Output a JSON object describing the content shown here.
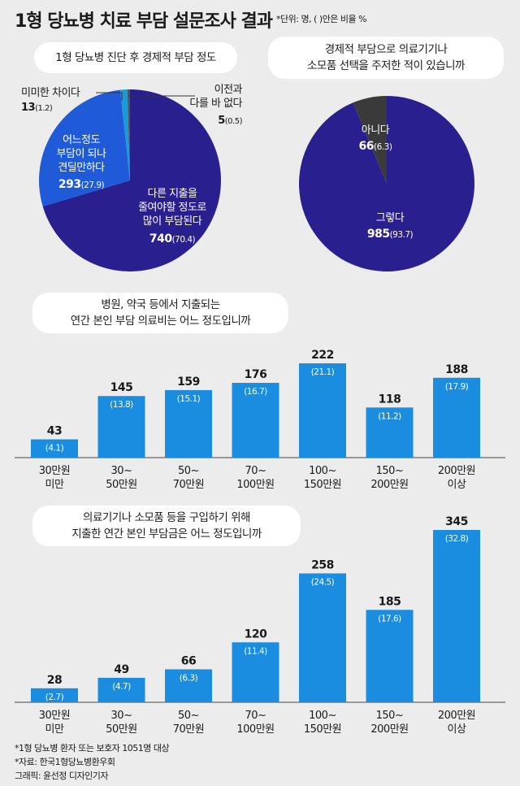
{
  "title": "1형 당뇨병 치료 부담 설문조사 결과",
  "unit_note": "*단위: 명, ( )안은 비율 %",
  "footnotes": {
    "target": "*1형 당뇨병 환자 또는 보호자 1051명 대상",
    "source": "*자료: 한국1형당뇨병환우회",
    "credit": "그래픽: 윤선정 디자인기자"
  },
  "colors": {
    "dark_blue": "#2a1f8f",
    "mid_blue": "#1f5ad8",
    "light_blue": "#1c9ad6",
    "bar_blue": "#1a8de0",
    "gray": "#555555",
    "dark_gray": "#3a3a3a"
  },
  "chart_data": [
    {
      "type": "pie",
      "title": "1형 당뇨병 진단 후 경제적 부담 정도",
      "slices": [
        {
          "label": "다른 지출을\n줄여야할 정도로\n많이 부담된다",
          "value": 740,
          "pct": "(70.4)"
        },
        {
          "label": "어느정도\n부담이 되나\n견딜만하다",
          "value": 293,
          "pct": "(27.9)"
        },
        {
          "label": "미미한 차이다",
          "value": 13,
          "pct": "(1.2)"
        },
        {
          "label": "이전과\n다를 바 없다",
          "value": 5,
          "pct": "(0.5)"
        }
      ]
    },
    {
      "type": "pie",
      "title": "경제적 부담으로 의료기기나\n소모품 선택을 주저한 적이 있습니까",
      "slices": [
        {
          "label": "그렇다",
          "value": 985,
          "pct": "(93.7)"
        },
        {
          "label": "아니다",
          "value": 66,
          "pct": "(6.3)"
        }
      ]
    },
    {
      "type": "bar",
      "title": "병원, 약국 등에서 지출되는\n연간 본인 부담 의료비는 어느 정도입니까",
      "categories": [
        "30만원\n미만",
        "30~\n50만원",
        "50~\n70만원",
        "70~\n100만원",
        "100~\n150만원",
        "150~\n200만원",
        "200만원\n이상"
      ],
      "values": [
        43,
        145,
        159,
        176,
        222,
        118,
        188
      ],
      "pcts": [
        "(4.1)",
        "(13.8)",
        "(15.1)",
        "(16.7)",
        "(21.1)",
        "(11.2)",
        "(17.9)"
      ]
    },
    {
      "type": "bar",
      "title": "의료기기나 소모품 등을 구입하기 위해\n지출한 연간 본인 부담금은 어느 정도입니까",
      "categories": [
        "30만원\n미만",
        "30~\n50만원",
        "50~\n70만원",
        "70~\n100만원",
        "100~\n150만원",
        "150~\n200만원",
        "200만원\n이상"
      ],
      "values": [
        28,
        49,
        66,
        120,
        258,
        185,
        345
      ],
      "pcts": [
        "(2.7)",
        "(4.7)",
        "(6.3)",
        "(11.4)",
        "(24.5)",
        "(17.6)",
        "(32.8)"
      ]
    }
  ]
}
